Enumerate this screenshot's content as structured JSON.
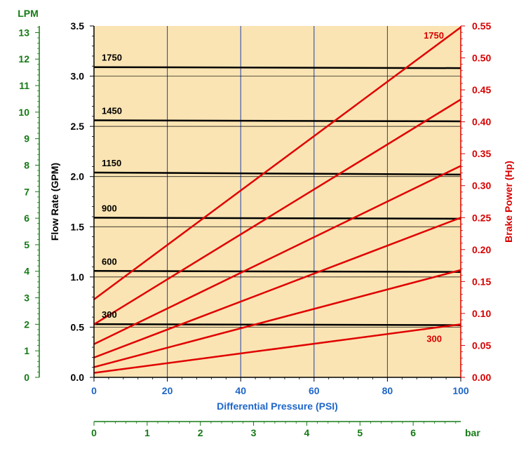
{
  "chart_data": {
    "type": "line",
    "title": "",
    "xlabel": "Differential Pressure (PSI)",
    "xlim": [
      0,
      100
    ],
    "x_ticks": [
      0,
      20,
      40,
      60,
      80,
      100
    ],
    "ylabel_left": "Flow Rate (GPM)",
    "ylim_left": [
      0,
      3.5
    ],
    "y_ticks_left": [
      "0.0",
      "0.5",
      "1.0",
      "1.5",
      "2.0",
      "2.5",
      "3.0",
      "3.5"
    ],
    "ylabel_right": "Brake Power (Hp)",
    "ylim_right": [
      0,
      0.55
    ],
    "y_ticks_right": [
      "0.00",
      "0.05",
      "0.10",
      "0.15",
      "0.20",
      "0.25",
      "0.30",
      "0.35",
      "0.40",
      "0.45",
      "0.50",
      "0.55"
    ],
    "lpm_axis": {
      "label": "LPM",
      "ticks": [
        "0",
        "1",
        "2",
        "3",
        "4",
        "5",
        "6",
        "7",
        "8",
        "9",
        "10",
        "11",
        "12",
        "13"
      ],
      "gpm_per_lpm": 0.26417
    },
    "bar_axis": {
      "label": "bar",
      "ticks": [
        "0",
        "1",
        "2",
        "3",
        "4",
        "5",
        "6"
      ],
      "psi_per_bar": 14.5038
    },
    "grid": true,
    "colors": {
      "plot_background": "#fae4b3",
      "flow_lines": "#000000",
      "power_lines": "#e00000",
      "grid_lines": "#1f3fa8",
      "lpm_axis": "#157a15",
      "psi_axis": "#1e66c8",
      "power_axis": "#d80000"
    },
    "flow_series": [
      {
        "label": "1750",
        "x": [
          0,
          100
        ],
        "y": [
          3.09,
          3.08
        ]
      },
      {
        "label": "1450",
        "x": [
          0,
          100
        ],
        "y": [
          2.56,
          2.55
        ]
      },
      {
        "label": "1150",
        "x": [
          0,
          100
        ],
        "y": [
          2.04,
          2.02
        ]
      },
      {
        "label": "900",
        "x": [
          0,
          100
        ],
        "y": [
          1.59,
          1.58
        ]
      },
      {
        "label": "600",
        "x": [
          0,
          100
        ],
        "y": [
          1.06,
          1.05
        ]
      },
      {
        "label": "300",
        "x": [
          0,
          100
        ],
        "y": [
          0.53,
          0.52
        ]
      }
    ],
    "power_series": [
      {
        "label": "1750",
        "x": [
          0,
          100
        ],
        "y": [
          0.122,
          0.548
        ]
      },
      {
        "label": "",
        "x": [
          0,
          100
        ],
        "y": [
          0.083,
          0.435
        ]
      },
      {
        "label": "",
        "x": [
          0,
          100
        ],
        "y": [
          0.052,
          0.331
        ]
      },
      {
        "label": "",
        "x": [
          0,
          100
        ],
        "y": [
          0.031,
          0.25
        ]
      },
      {
        "label": "",
        "x": [
          0,
          100
        ],
        "y": [
          0.016,
          0.168
        ]
      },
      {
        "label": "300",
        "x": [
          0,
          100
        ],
        "y": [
          0.007,
          0.083
        ]
      }
    ]
  }
}
